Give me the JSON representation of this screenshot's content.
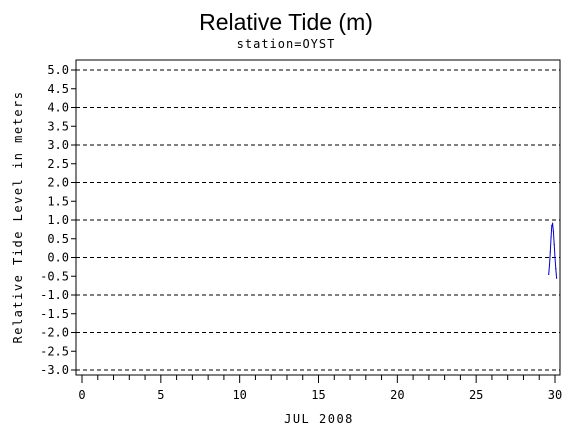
{
  "chart_data": {
    "type": "line",
    "title": "Relative Tide (m)",
    "subtitle": "station=OYST",
    "xlabel": "JUL 2008",
    "ylabel": "Relative Tide Level in meters",
    "xlim": [
      0,
      30
    ],
    "ylim": [
      -3.0,
      5.0
    ],
    "x_ticks": [
      "0",
      "5",
      "10",
      "15",
      "20",
      "25",
      "30"
    ],
    "y_ticks": [
      "5.0",
      "4.5",
      "4.0",
      "3.5",
      "3.0",
      "2.5",
      "2.0",
      "1.5",
      "1.0",
      "0.5",
      "0.0",
      "-0.5",
      "-1.0",
      "-1.5",
      "-2.0",
      "-2.5",
      "-3.0"
    ],
    "gridlines_y": [
      5.0,
      4.0,
      3.0,
      2.0,
      1.0,
      0.0,
      -1.0,
      -2.0,
      -3.0
    ],
    "grid": "horizontal dashed at whole meters",
    "series": [
      {
        "color": "#0000cc",
        "x": [
          29.6,
          29.65,
          29.7,
          29.75,
          29.8,
          29.85,
          29.9,
          29.95,
          30.0,
          30.05,
          30.1
        ],
        "y": [
          -0.45,
          -0.2,
          0.15,
          0.55,
          0.85,
          0.9,
          0.7,
          0.35,
          0.0,
          -0.3,
          -0.55
        ]
      }
    ]
  }
}
